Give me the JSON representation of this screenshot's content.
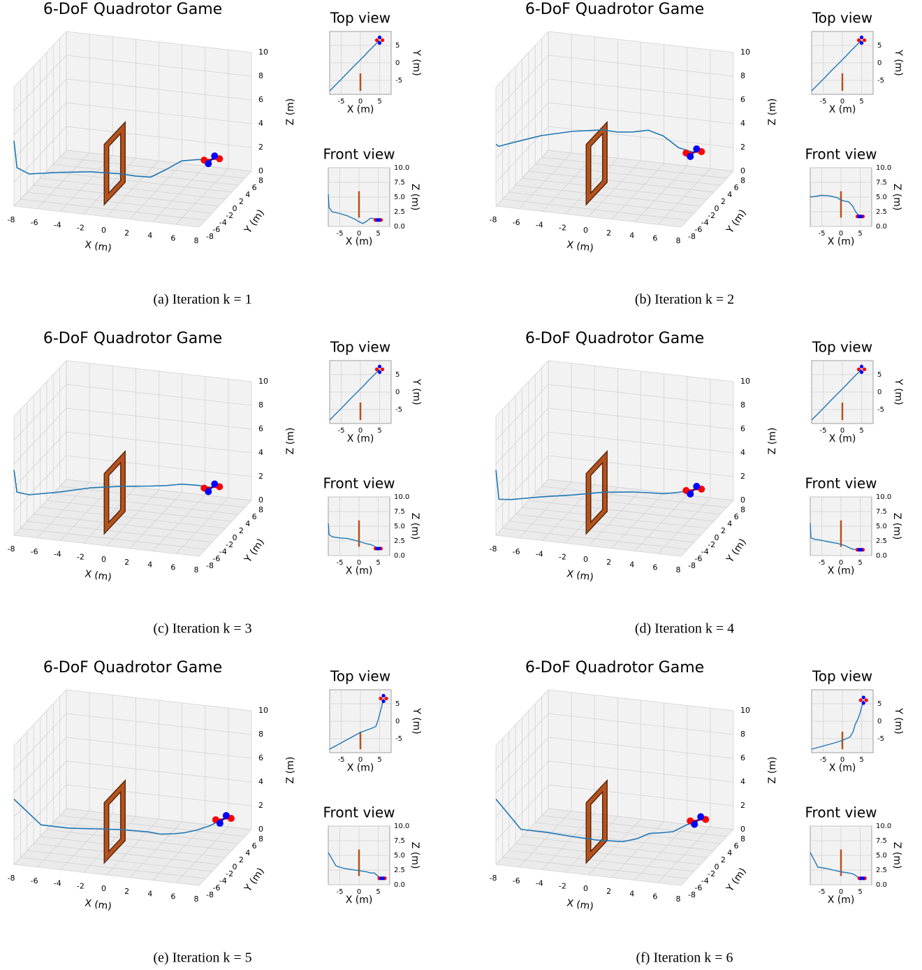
{
  "chart_data": [
    {
      "type": "quadrotor",
      "title": "6-DoF Quadrotor Game",
      "caption": "(a) Iteration k = 1",
      "xlabel": "X (m)",
      "ylabel": "Y (m)",
      "zlabel": "Z (m)",
      "xlim": [
        -8,
        8
      ],
      "ylim": [
        -8,
        8
      ],
      "zlim": [
        0,
        10
      ],
      "xticks": [
        -8,
        -6,
        -4,
        -2,
        0,
        2,
        4,
        6,
        8
      ],
      "yticks": [
        -8,
        -6,
        -4,
        -2,
        0,
        2,
        4,
        6,
        8
      ],
      "zticks": [
        0,
        2,
        4,
        6,
        8,
        10
      ],
      "color": "#1f77b4",
      "x": [
        -8,
        -7.8,
        -7,
        -5,
        -3,
        -1,
        0,
        1,
        2,
        3,
        4,
        5
      ],
      "y": [
        -8,
        -7.8,
        -6.9,
        -4.7,
        -2.4,
        -0.2,
        0.9,
        2.0,
        3.2,
        4.3,
        5.4,
        6.5
      ],
      "z": [
        5.5,
        3.2,
        2.5,
        2.2,
        1.8,
        1.2,
        0.8,
        0.5,
        0.9,
        1.4,
        1.3,
        1.1
      ],
      "gate": {
        "x": 0,
        "y": [
          -8,
          -3
        ],
        "z": [
          1.5,
          6
        ],
        "color": "#b5521d"
      },
      "top_view": {
        "title": "Top view",
        "xlabel": "X (m)",
        "ylabel": "Y (m)",
        "xlim": [
          -8,
          8
        ],
        "ylim": [
          -9,
          9
        ],
        "xticks": [
          -5,
          0,
          5
        ],
        "yticks": [
          -5,
          0,
          5
        ]
      },
      "front_view": {
        "title": "Front view",
        "xlabel": "X (m)",
        "zlabel": "Z (m)",
        "xlim": [
          -8,
          8
        ],
        "zlim": [
          0,
          10
        ],
        "xticks": [
          -5,
          0,
          5
        ],
        "zticks": [
          {
            "value": 0,
            "label": "0.0"
          },
          2.5,
          {
            "value": 5,
            "label": "5.0"
          },
          7.5,
          {
            "value": 10,
            "label": "10.0"
          }
        ]
      }
    },
    {
      "type": "quadrotor",
      "title": "6-DoF Quadrotor Game",
      "caption": "(b) Iteration k = 2",
      "xlabel": "X (m)",
      "ylabel": "Y (m)",
      "zlabel": "Z (m)",
      "xlim": [
        -8,
        8
      ],
      "ylim": [
        -8,
        8
      ],
      "zlim": [
        0,
        10
      ],
      "xticks": [
        -8,
        -6,
        -4,
        -2,
        0,
        2,
        4,
        6,
        8
      ],
      "yticks": [
        -8,
        -6,
        -4,
        -2,
        0,
        2,
        4,
        6,
        8
      ],
      "zticks": [
        0,
        2,
        4,
        6,
        8,
        10
      ],
      "color": "#1f77b4",
      "x": [
        -8,
        -7.8,
        -7,
        -5,
        -3,
        -1,
        0,
        1,
        2,
        3,
        4,
        5
      ],
      "y": [
        -8,
        -7.8,
        -6.9,
        -4.7,
        -2.4,
        -0.2,
        0.9,
        2.0,
        3.2,
        4.3,
        5.4,
        6.5
      ],
      "z": [
        5.2,
        5.0,
        5.1,
        5.3,
        5.2,
        4.9,
        4.5,
        4.3,
        4.2,
        3.5,
        2.3,
        1.7
      ],
      "gate": {
        "x": 0,
        "y": [
          -8,
          -3
        ],
        "z": [
          1.5,
          6
        ],
        "color": "#b5521d"
      },
      "top_view": {
        "title": "Top view",
        "xlabel": "X (m)",
        "ylabel": "Y (m)",
        "xlim": [
          -8,
          8
        ],
        "ylim": [
          -9,
          9
        ],
        "xticks": [
          -5,
          0,
          5
        ],
        "yticks": [
          -5,
          0,
          5
        ]
      },
      "front_view": {
        "title": "Front view",
        "xlabel": "X (m)",
        "zlabel": "Z (m)",
        "xlim": [
          -8,
          8
        ],
        "zlim": [
          0,
          10
        ],
        "xticks": [
          -5,
          0,
          5
        ],
        "zticks": [
          {
            "value": 0,
            "label": "0.0"
          },
          2.5,
          {
            "value": 5,
            "label": "5.0"
          },
          7.5,
          {
            "value": 10,
            "label": "10.0"
          }
        ]
      }
    },
    {
      "type": "quadrotor",
      "title": "6-DoF Quadrotor Game",
      "caption": "(c) Iteration k = 3",
      "xlabel": "X (m)",
      "ylabel": "Y (m)",
      "zlabel": "Z (m)",
      "xlim": [
        -8,
        8
      ],
      "ylim": [
        -8,
        8
      ],
      "zlim": [
        0,
        10
      ],
      "xticks": [
        -8,
        -6,
        -4,
        -2,
        0,
        2,
        4,
        6,
        8
      ],
      "yticks": [
        -8,
        -6,
        -4,
        -2,
        0,
        2,
        4,
        6,
        8
      ],
      "zticks": [
        0,
        2,
        4,
        6,
        8,
        10
      ],
      "color": "#1f77b4",
      "x": [
        -8,
        -7.8,
        -7,
        -5,
        -3,
        -1,
        0,
        1,
        2,
        3,
        4,
        5
      ],
      "y": [
        -8,
        -7.8,
        -6.9,
        -4.7,
        -2.4,
        -0.2,
        0.9,
        2.0,
        3.2,
        4.3,
        5.4,
        6.5
      ],
      "z": [
        5.5,
        3.6,
        3.2,
        3.0,
        2.9,
        2.6,
        2.4,
        2.2,
        2.0,
        1.9,
        1.6,
        1.2
      ],
      "gate": {
        "x": 0,
        "y": [
          -8,
          -3
        ],
        "z": [
          1.5,
          6
        ],
        "color": "#b5521d"
      },
      "top_view": {
        "title": "Top view",
        "xlabel": "X (m)",
        "ylabel": "Y (m)",
        "xlim": [
          -8,
          8
        ],
        "ylim": [
          -9,
          9
        ],
        "xticks": [
          -5,
          0,
          5
        ],
        "yticks": [
          -5,
          0,
          5
        ]
      },
      "front_view": {
        "title": "Front view",
        "xlabel": "X (m)",
        "zlabel": "Z (m)",
        "xlim": [
          -8,
          8
        ],
        "zlim": [
          0,
          10
        ],
        "xticks": [
          -5,
          0,
          5
        ],
        "zticks": [
          {
            "value": 0,
            "label": "0.0"
          },
          2.5,
          {
            "value": 5,
            "label": "5.0"
          },
          7.5,
          {
            "value": 10,
            "label": "10.0"
          }
        ]
      }
    },
    {
      "type": "quadrotor",
      "title": "6-DoF Quadrotor Game",
      "caption": "(d) Iteration k = 4",
      "xlabel": "X (m)",
      "ylabel": "Y (m)",
      "zlabel": "Z (m)",
      "xlim": [
        -8,
        8
      ],
      "ylim": [
        -8,
        8
      ],
      "zlim": [
        0,
        10
      ],
      "xticks": [
        -8,
        -6,
        -4,
        -2,
        0,
        2,
        4,
        6,
        8
      ],
      "yticks": [
        -8,
        -6,
        -4,
        -2,
        0,
        2,
        4,
        6,
        8
      ],
      "zticks": [
        0,
        2,
        4,
        6,
        8,
        10
      ],
      "color": "#1f77b4",
      "x": [
        -8,
        -7.8,
        -7,
        -5,
        -3,
        -1,
        0,
        1,
        2,
        3,
        4,
        5
      ],
      "y": [
        -8,
        -7.8,
        -6.9,
        -4.7,
        -2.4,
        -0.2,
        0.9,
        2.0,
        3.2,
        4.3,
        5.4,
        6.5
      ],
      "z": [
        5.5,
        3.0,
        2.8,
        2.6,
        2.3,
        2.1,
        1.9,
        1.7,
        1.4,
        1.1,
        1.0,
        1.0
      ],
      "gate": {
        "x": 0,
        "y": [
          -8,
          -3
        ],
        "z": [
          1.5,
          6
        ],
        "color": "#b5521d"
      },
      "top_view": {
        "title": "Top view",
        "xlabel": "X (m)",
        "ylabel": "Y (m)",
        "xlim": [
          -8,
          8
        ],
        "ylim": [
          -9,
          9
        ],
        "xticks": [
          -5,
          0,
          5
        ],
        "yticks": [
          -5,
          0,
          5
        ]
      },
      "front_view": {
        "title": "Front view",
        "xlabel": "X (m)",
        "zlabel": "Z (m)",
        "xlim": [
          -8,
          8
        ],
        "zlim": [
          0,
          10
        ],
        "xticks": [
          -5,
          0,
          5
        ],
        "zticks": [
          {
            "value": 0,
            "label": "0.0"
          },
          2.5,
          {
            "value": 5,
            "label": "5.0"
          },
          7.5,
          {
            "value": 10,
            "label": "10.0"
          }
        ]
      }
    },
    {
      "type": "quadrotor",
      "title": "6-DoF Quadrotor Game",
      "caption": "(e) Iteration k = 5",
      "xlabel": "X (m)",
      "ylabel": "Y (m)",
      "zlabel": "Z (m)",
      "xlim": [
        -8,
        8
      ],
      "ylim": [
        -8,
        8
      ],
      "zlim": [
        0,
        10
      ],
      "xticks": [
        -8,
        -6,
        -4,
        -2,
        0,
        2,
        4,
        6,
        8
      ],
      "yticks": [
        -8,
        -6,
        -4,
        -2,
        0,
        2,
        4,
        6,
        8
      ],
      "zticks": [
        0,
        2,
        4,
        6,
        8,
        10
      ],
      "color": "#1f77b4",
      "x": [
        -8,
        -6,
        -4,
        -2,
        0,
        2,
        3,
        4,
        4.5,
        5,
        5.5,
        6
      ],
      "y": [
        -8,
        -6.8,
        -5.6,
        -4.4,
        -3.2,
        -2.4,
        -2.0,
        -1.5,
        0,
        2,
        4,
        6.5
      ],
      "z": [
        5.5,
        3.2,
        2.8,
        2.6,
        2.4,
        2.2,
        2.0,
        2.0,
        1.7,
        1.4,
        1.2,
        1.1
      ],
      "gate": {
        "x": 0,
        "y": [
          -8,
          -3
        ],
        "z": [
          1.5,
          6
        ],
        "color": "#b5521d"
      },
      "top_view": {
        "title": "Top view",
        "xlabel": "X (m)",
        "ylabel": "Y (m)",
        "xlim": [
          -8,
          8
        ],
        "ylim": [
          -9,
          9
        ],
        "xticks": [
          -5,
          0,
          5
        ],
        "yticks": [
          -5,
          0,
          5
        ]
      },
      "front_view": {
        "title": "Front view",
        "xlabel": "X (m)",
        "zlabel": "Z (m)",
        "xlim": [
          -8,
          8
        ],
        "zlim": [
          0,
          10
        ],
        "xticks": [
          -5,
          0,
          5
        ],
        "zticks": [
          {
            "value": 0,
            "label": "0.0"
          },
          2.5,
          {
            "value": 5,
            "label": "5.0"
          },
          7.5,
          {
            "value": 10,
            "label": "10.0"
          }
        ]
      }
    },
    {
      "type": "quadrotor",
      "title": "6-DoF Quadrotor Game",
      "caption": "(f) Iteration k = 6",
      "xlabel": "X (m)",
      "ylabel": "Y (m)",
      "zlabel": "Z (m)",
      "xlim": [
        -8,
        8
      ],
      "ylim": [
        -8,
        8
      ],
      "zlim": [
        0,
        10
      ],
      "xticks": [
        -8,
        -6,
        -4,
        -2,
        0,
        2,
        4,
        6,
        8
      ],
      "yticks": [
        -8,
        -6,
        -4,
        -2,
        0,
        2,
        4,
        6,
        8
      ],
      "zticks": [
        0,
        2,
        4,
        6,
        8,
        10
      ],
      "color": "#1f77b4",
      "x": [
        -8,
        -6,
        -4,
        -2,
        0,
        2,
        2.8,
        3.3,
        4,
        4.5,
        5,
        5.5
      ],
      "y": [
        -8,
        -7.4,
        -6.8,
        -6.2,
        -5.5,
        -4.5,
        -3,
        -1,
        0.5,
        2,
        4,
        6
      ],
      "z": [
        5.5,
        3.0,
        2.8,
        2.5,
        2.2,
        2.0,
        1.9,
        1.8,
        1.5,
        1.2,
        1.2,
        1.1
      ],
      "gate": {
        "x": 0,
        "y": [
          -8,
          -3
        ],
        "z": [
          1.5,
          6
        ],
        "color": "#b5521d"
      },
      "top_view": {
        "title": "Top view",
        "xlabel": "X (m)",
        "ylabel": "Y (m)",
        "xlim": [
          -8,
          8
        ],
        "ylim": [
          -9,
          9
        ],
        "xticks": [
          -5,
          0,
          5
        ],
        "yticks": [
          -5,
          0,
          5
        ]
      },
      "front_view": {
        "title": "Front view",
        "xlabel": "X (m)",
        "zlabel": "Z (m)",
        "xlim": [
          -8,
          8
        ],
        "zlim": [
          0,
          10
        ],
        "xticks": [
          -5,
          0,
          5
        ],
        "zticks": [
          {
            "value": 0,
            "label": "0.0"
          },
          2.5,
          {
            "value": 5,
            "label": "5.0"
          },
          7.5,
          {
            "value": 10,
            "label": "10.0"
          }
        ]
      }
    }
  ]
}
